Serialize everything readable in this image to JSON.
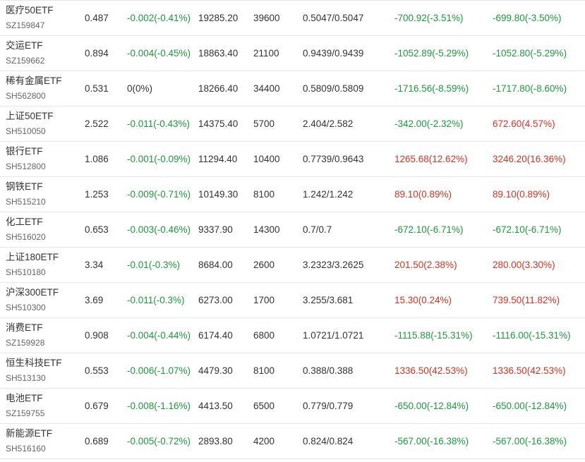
{
  "colors": {
    "up": "#e0301e",
    "down": "#1a9c3a",
    "flat": "#333333"
  },
  "rows": [
    {
      "name": "医疗50ETF",
      "code": "SZ159847",
      "price": "0.487",
      "change": "-0.002(-0.41%)",
      "change_dir": "down",
      "amount": "19285.20",
      "shares": "39600",
      "cost": "0.5047/0.5047",
      "pnl1": "-700.92(-3.51%)",
      "pnl1_dir": "down",
      "pnl2": "-699.80(-3.50%)",
      "pnl2_dir": "down"
    },
    {
      "name": "交运ETF",
      "code": "SZ159662",
      "price": "0.894",
      "change": "-0.004(-0.45%)",
      "change_dir": "down",
      "amount": "18863.40",
      "shares": "21100",
      "cost": "0.9439/0.9439",
      "pnl1": "-1052.89(-5.29%)",
      "pnl1_dir": "down",
      "pnl2": "-1052.80(-5.29%)",
      "pnl2_dir": "down"
    },
    {
      "name": "稀有金属ETF",
      "code": "SH562800",
      "price": "0.531",
      "change": "0(0%)",
      "change_dir": "flat",
      "amount": "18266.40",
      "shares": "34400",
      "cost": "0.5809/0.5809",
      "pnl1": "-1716.56(-8.59%)",
      "pnl1_dir": "down",
      "pnl2": "-1717.80(-8.60%)",
      "pnl2_dir": "down"
    },
    {
      "name": "上证50ETF",
      "code": "SH510050",
      "price": "2.522",
      "change": "-0.011(-0.43%)",
      "change_dir": "down",
      "amount": "14375.40",
      "shares": "5700",
      "cost": "2.404/2.582",
      "pnl1": "-342.00(-2.32%)",
      "pnl1_dir": "down",
      "pnl2": "672.60(4.57%)",
      "pnl2_dir": "up"
    },
    {
      "name": "银行ETF",
      "code": "SH512800",
      "price": "1.086",
      "change": "-0.001(-0.09%)",
      "change_dir": "down",
      "amount": "11294.40",
      "shares": "10400",
      "cost": "0.7739/0.9643",
      "pnl1": "1265.68(12.62%)",
      "pnl1_dir": "up",
      "pnl2": "3246.20(16.36%)",
      "pnl2_dir": "up"
    },
    {
      "name": "钢铁ETF",
      "code": "SH515210",
      "price": "1.253",
      "change": "-0.009(-0.71%)",
      "change_dir": "down",
      "amount": "10149.30",
      "shares": "8100",
      "cost": "1.242/1.242",
      "pnl1": "89.10(0.89%)",
      "pnl1_dir": "up",
      "pnl2": "89.10(0.89%)",
      "pnl2_dir": "up"
    },
    {
      "name": "化工ETF",
      "code": "SH516020",
      "price": "0.653",
      "change": "-0.003(-0.46%)",
      "change_dir": "down",
      "amount": "9337.90",
      "shares": "14300",
      "cost": "0.7/0.7",
      "pnl1": "-672.10(-6.71%)",
      "pnl1_dir": "down",
      "pnl2": "-672.10(-6.71%)",
      "pnl2_dir": "down"
    },
    {
      "name": "上证180ETF",
      "code": "SH510180",
      "price": "3.34",
      "change": "-0.01(-0.3%)",
      "change_dir": "down",
      "amount": "8684.00",
      "shares": "2600",
      "cost": "3.2323/3.2625",
      "pnl1": "201.50(2.38%)",
      "pnl1_dir": "up",
      "pnl2": "280.00(3.30%)",
      "pnl2_dir": "up"
    },
    {
      "name": "沪深300ETF",
      "code": "SH510300",
      "price": "3.69",
      "change": "-0.011(-0.3%)",
      "change_dir": "down",
      "amount": "6273.00",
      "shares": "1700",
      "cost": "3.255/3.681",
      "pnl1": "15.30(0.24%)",
      "pnl1_dir": "up",
      "pnl2": "739.50(11.82%)",
      "pnl2_dir": "up"
    },
    {
      "name": "消费ETF",
      "code": "SZ159928",
      "price": "0.908",
      "change": "-0.004(-0.44%)",
      "change_dir": "down",
      "amount": "6174.40",
      "shares": "6800",
      "cost": "1.0721/1.0721",
      "pnl1": "-1115.88(-15.31%)",
      "pnl1_dir": "down",
      "pnl2": "-1116.00(-15.31%)",
      "pnl2_dir": "down"
    },
    {
      "name": "恒生科技ETF",
      "code": "SH513130",
      "price": "0.553",
      "change": "-0.006(-1.07%)",
      "change_dir": "down",
      "amount": "4479.30",
      "shares": "8100",
      "cost": "0.388/0.388",
      "pnl1": "1336.50(42.53%)",
      "pnl1_dir": "up",
      "pnl2": "1336.50(42.53%)",
      "pnl2_dir": "up"
    },
    {
      "name": "电池ETF",
      "code": "SZ159755",
      "price": "0.679",
      "change": "-0.008(-1.16%)",
      "change_dir": "down",
      "amount": "4413.50",
      "shares": "6500",
      "cost": "0.779/0.779",
      "pnl1": "-650.00(-12.84%)",
      "pnl1_dir": "down",
      "pnl2": "-650.00(-12.84%)",
      "pnl2_dir": "down"
    },
    {
      "name": "新能源ETF",
      "code": "SH516160",
      "price": "0.689",
      "change": "-0.005(-0.72%)",
      "change_dir": "down",
      "amount": "2893.80",
      "shares": "4200",
      "cost": "0.824/0.824",
      "pnl1": "-567.00(-16.38%)",
      "pnl1_dir": "down",
      "pnl2": "-567.00(-16.38%)",
      "pnl2_dir": "down"
    }
  ]
}
